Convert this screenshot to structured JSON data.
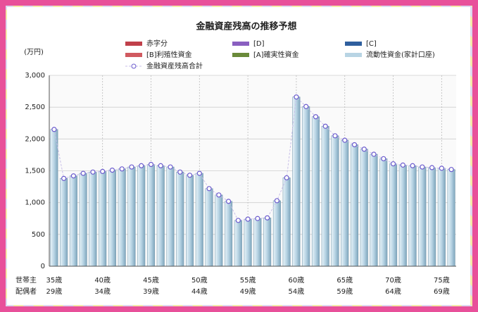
{
  "chart_data": {
    "type": "bar",
    "title": "金融資産残高の推移予想",
    "y_label": "(万円)",
    "row_labels": [
      "世帯主",
      "配偶者"
    ],
    "categories": [
      "35歳",
      null,
      null,
      null,
      null,
      "40歳",
      null,
      null,
      null,
      null,
      "45歳",
      null,
      null,
      null,
      null,
      "50歳",
      null,
      null,
      null,
      null,
      "55歳",
      null,
      null,
      null,
      null,
      "60歳",
      null,
      null,
      null,
      null,
      "65歳",
      null,
      null,
      null,
      null,
      "70歳",
      null,
      null,
      null,
      null,
      "75歳",
      null
    ],
    "spouse_categories": [
      "29歳",
      null,
      null,
      null,
      null,
      "34歳",
      null,
      null,
      null,
      null,
      "39歳",
      null,
      null,
      null,
      null,
      "44歳",
      null,
      null,
      null,
      null,
      "49歳",
      null,
      null,
      null,
      null,
      "54歳",
      null,
      null,
      null,
      null,
      "59歳",
      null,
      null,
      null,
      null,
      "64歳",
      null,
      null,
      null,
      null,
      "69歳",
      null
    ],
    "series": [
      {
        "name": "赤字分",
        "color": "#c0404a"
      },
      {
        "name": "[D]",
        "color": "#8a5fc0"
      },
      {
        "name": "[C]",
        "color": "#2f5f9e"
      },
      {
        "name": "[B]利殖性資金",
        "color": "#d05a60"
      },
      {
        "name": "[A]確実性資金",
        "color": "#6a8a3a"
      },
      {
        "name": "流動性資金(家計口座)",
        "color": "#b8d4e4",
        "values": [
          2150,
          1380,
          1420,
          1460,
          1480,
          1490,
          1510,
          1530,
          1560,
          1580,
          1600,
          1580,
          1560,
          1480,
          1430,
          1460,
          1220,
          1120,
          1020,
          720,
          740,
          750,
          760,
          1030,
          1390,
          2660,
          2510,
          2350,
          2200,
          2050,
          1980,
          1910,
          1840,
          1760,
          1690,
          1610,
          1590,
          1580,
          1560,
          1550,
          1540,
          1520
        ]
      },
      {
        "name": "金融資産残高合計",
        "color": "#6a5acd",
        "kind": "line",
        "values": [
          2150,
          1380,
          1420,
          1460,
          1480,
          1490,
          1510,
          1530,
          1560,
          1580,
          1600,
          1580,
          1560,
          1480,
          1430,
          1460,
          1220,
          1120,
          1020,
          720,
          740,
          750,
          760,
          1030,
          1390,
          2660,
          2510,
          2350,
          2200,
          2050,
          1980,
          1910,
          1840,
          1760,
          1690,
          1610,
          1590,
          1580,
          1560,
          1550,
          1540,
          1520
        ]
      }
    ],
    "ylim": [
      0,
      3000
    ],
    "yticks": [
      0,
      500,
      {
        "value": 1000,
        "label": "1,000"
      },
      {
        "value": 1500,
        "label": "1,500"
      },
      {
        "value": 2000,
        "label": "2,000"
      },
      {
        "value": 2500,
        "label": "2,500"
      },
      {
        "value": 3000,
        "label": "3,000"
      }
    ],
    "grid": true
  }
}
